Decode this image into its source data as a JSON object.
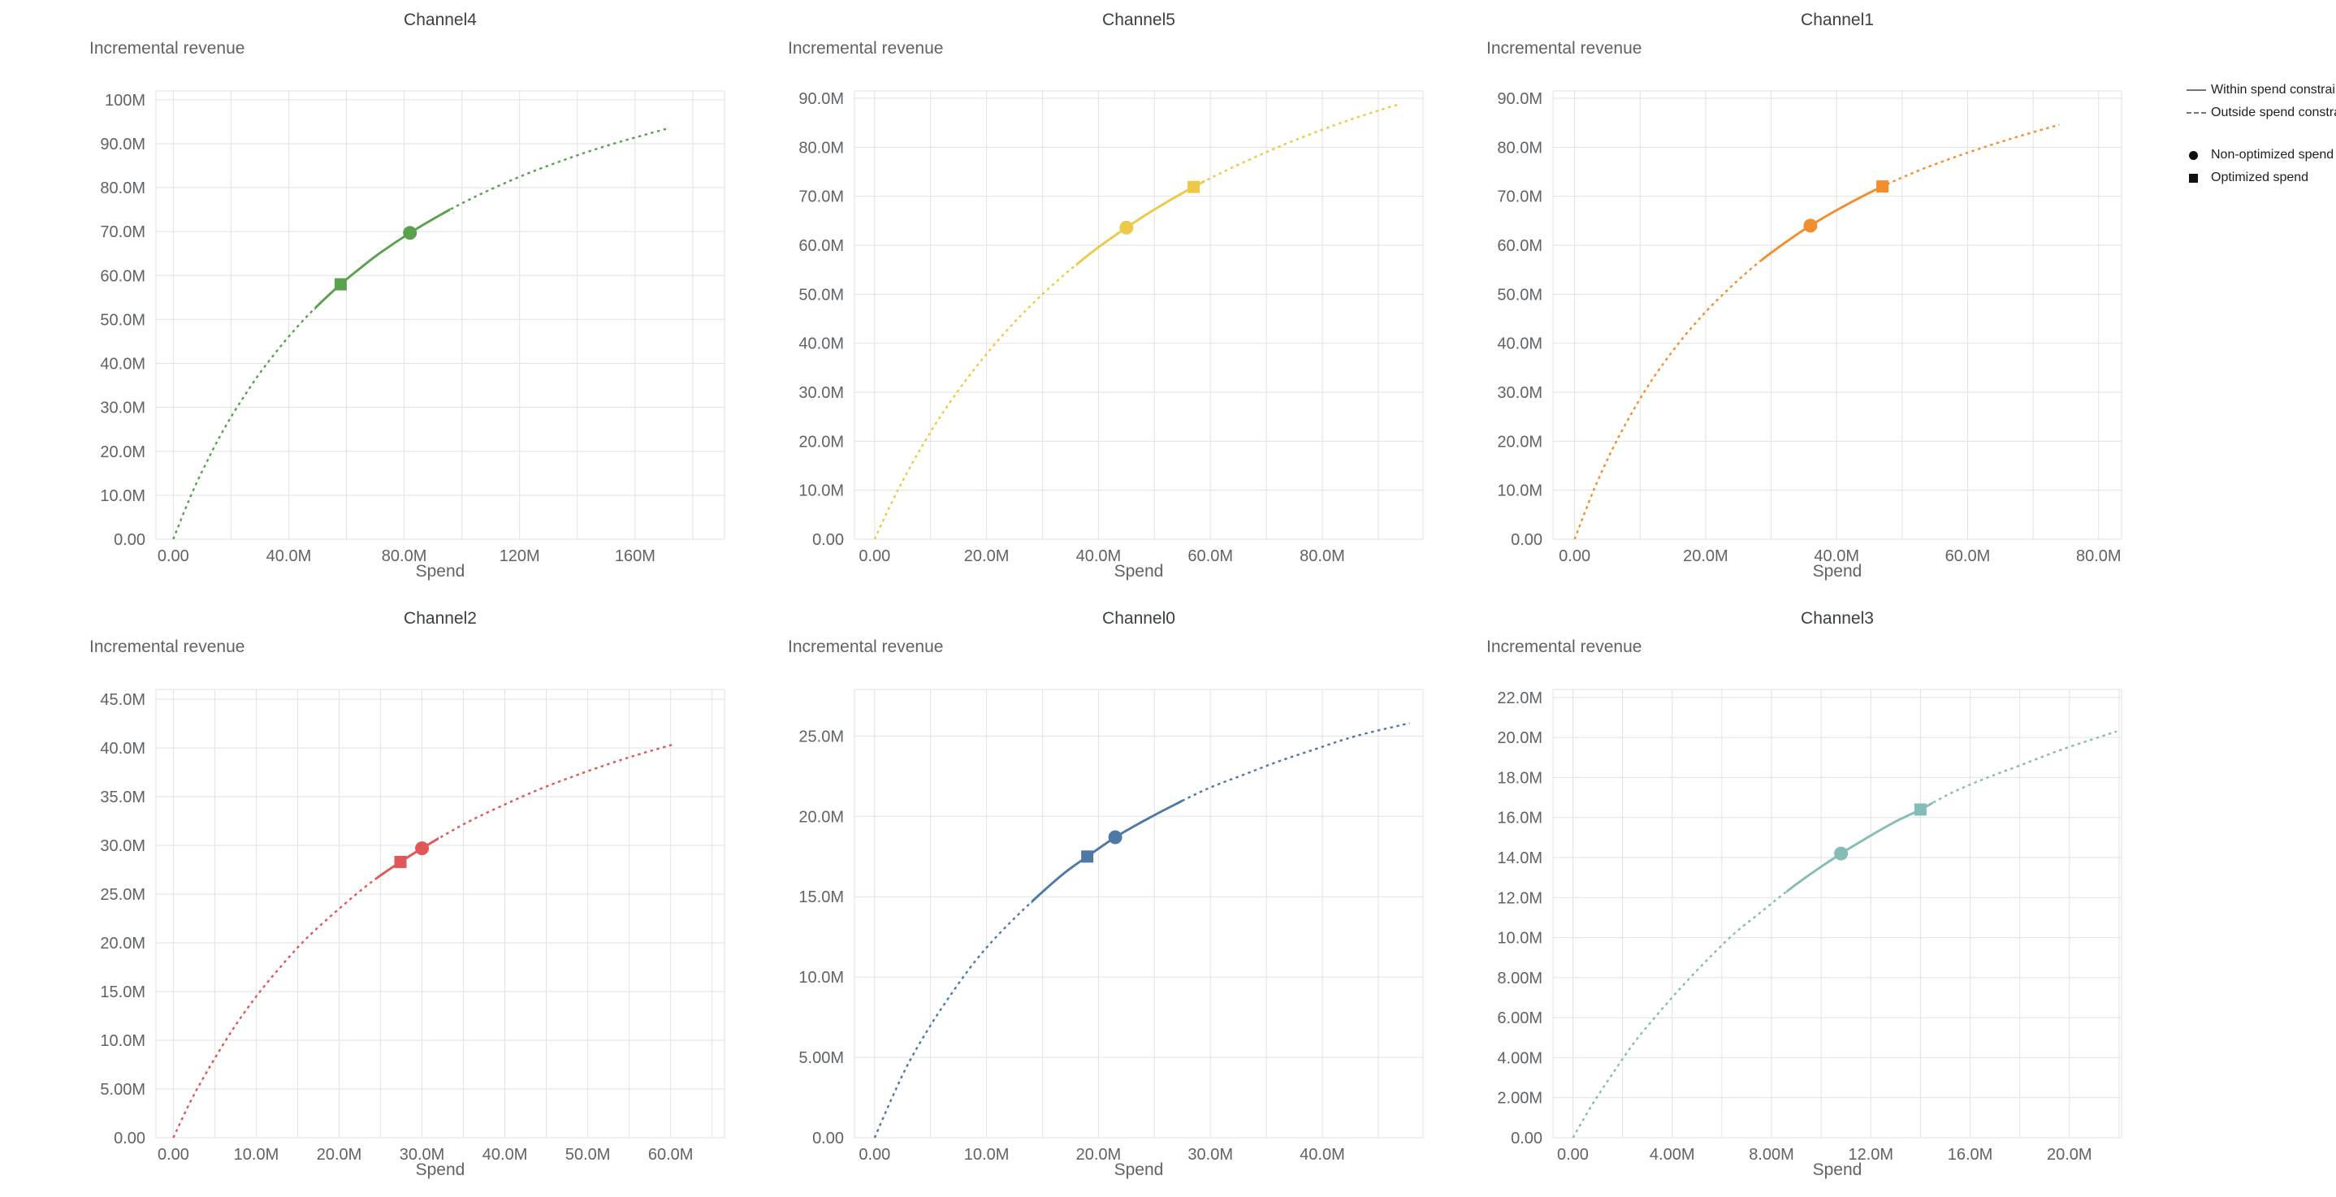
{
  "axis_labels": {
    "y": "Incremental revenue",
    "x": "Spend"
  },
  "legend": {
    "line_items": [
      {
        "style": "solid",
        "label": "Within spend constraint"
      },
      {
        "style": "dashed",
        "label": "Outside spend constraint"
      }
    ],
    "marker_items": [
      {
        "shape": "circle",
        "label": "Non-optimized spend"
      },
      {
        "shape": "square",
        "label": "Optimized spend"
      }
    ],
    "sample_color": "#757575",
    "marker_color": "#111111",
    "text_color": "#212121"
  },
  "style": {
    "grid_color": "#e2e2e2",
    "tick_text_color": "#5f6368",
    "title_text_color": "#3c4043"
  },
  "chart_data": [
    {
      "type": "line",
      "title": "Channel4",
      "color": "#59A14F",
      "xlabel": "Spend",
      "ylabel": "Incremental revenue",
      "units": "M",
      "x_range": [
        -6,
        191
      ],
      "y_range": [
        0,
        102
      ],
      "x_ticks": {
        "values": [
          0,
          40,
          80,
          120,
          160
        ],
        "labels": [
          "0.00",
          "40.0M",
          "80.0M",
          "120M",
          "160M"
        ],
        "minor_step": 20
      },
      "y_ticks": {
        "values": [
          0,
          10,
          20,
          30,
          40,
          50,
          60,
          70,
          80,
          90,
          100
        ],
        "labels": [
          "0.00",
          "10.0M",
          "20.0M",
          "30.0M",
          "40.0M",
          "50.0M",
          "60.0M",
          "70.0M",
          "80.0M",
          "90.0M",
          "100M"
        ]
      },
      "curve": {
        "x": [
          0,
          4,
          8,
          12,
          16,
          20,
          25,
          30,
          35,
          40,
          46,
          52,
          58,
          65,
          72,
          82,
          92,
          102,
          112,
          122,
          132,
          142,
          152,
          160,
          166,
          171
        ],
        "y": [
          0,
          6.6,
          12.7,
          18.1,
          23.2,
          27.8,
          33.0,
          37.8,
          42.1,
          46.1,
          50.5,
          54.4,
          58.0,
          61.8,
          65.3,
          69.7,
          73.6,
          77.1,
          80.2,
          83.0,
          85.5,
          87.8,
          89.9,
          91.4,
          92.5,
          93.4
        ]
      },
      "solid_segment_x": [
        49,
        96
      ],
      "markers": {
        "optimized": {
          "x": 58,
          "y": 58.0
        },
        "non_optimized": {
          "x": 82,
          "y": 69.7
        }
      }
    },
    {
      "type": "line",
      "title": "Channel5",
      "color": "#EDC948",
      "xlabel": "Spend",
      "ylabel": "Incremental revenue",
      "units": "M",
      "x_range": [
        -3.6,
        98
      ],
      "y_range": [
        0,
        91.5
      ],
      "x_ticks": {
        "values": [
          0,
          20,
          40,
          60,
          80
        ],
        "labels": [
          "0.00",
          "20.0M",
          "40.0M",
          "60.0M",
          "80.0M"
        ],
        "minor_step": 10
      },
      "y_ticks": {
        "values": [
          0,
          10,
          20,
          30,
          40,
          50,
          60,
          70,
          80,
          90
        ],
        "labels": [
          "0.00",
          "10.0M",
          "20.0M",
          "30.0M",
          "40.0M",
          "50.0M",
          "60.0M",
          "70.0M",
          "80.0M",
          "90.0M"
        ]
      },
      "curve": {
        "x": [
          0,
          3,
          6,
          9,
          12,
          16,
          20,
          24,
          28,
          32,
          36,
          40,
          45,
          50,
          57,
          64,
          72,
          80,
          87,
          94
        ],
        "y": [
          0,
          7.4,
          14.0,
          20.0,
          25.5,
          32.0,
          37.8,
          43.1,
          47.8,
          52.1,
          56.0,
          59.6,
          63.6,
          67.3,
          71.9,
          75.9,
          80.0,
          83.6,
          86.4,
          88.9
        ]
      },
      "solid_segment_x": [
        36,
        59
      ],
      "markers": {
        "non_optimized": {
          "x": 45,
          "y": 63.6
        },
        "optimized": {
          "x": 57,
          "y": 71.9
        }
      }
    },
    {
      "type": "line",
      "title": "Channel1",
      "color": "#F28E2B",
      "xlabel": "Spend",
      "ylabel": "Incremental revenue",
      "units": "M",
      "x_range": [
        -3.3,
        83.5
      ],
      "y_range": [
        0,
        91.5
      ],
      "x_ticks": {
        "values": [
          0,
          20,
          40,
          60,
          80
        ],
        "labels": [
          "0.00",
          "20.0M",
          "40.0M",
          "60.0M",
          "80.0M"
        ],
        "minor_step": 10
      },
      "y_ticks": {
        "values": [
          0,
          10,
          20,
          30,
          40,
          50,
          60,
          70,
          80,
          90
        ],
        "labels": [
          "0.00",
          "10.0M",
          "20.0M",
          "30.0M",
          "40.0M",
          "50.0M",
          "60.0M",
          "70.0M",
          "80.0M",
          "90.0M"
        ]
      },
      "curve": {
        "x": [
          0,
          3,
          6,
          9,
          12,
          16,
          20,
          24,
          28,
          32,
          36,
          41,
          47,
          53,
          60,
          67,
          74
        ],
        "y": [
          0,
          10.3,
          19.0,
          26.4,
          32.9,
          40.2,
          46.4,
          51.7,
          56.4,
          60.4,
          64.0,
          67.9,
          72.0,
          75.5,
          78.9,
          81.9,
          84.6
        ]
      },
      "solid_segment_x": [
        28.5,
        47.5
      ],
      "markers": {
        "non_optimized": {
          "x": 36,
          "y": 64.0
        },
        "optimized": {
          "x": 47,
          "y": 72.0
        }
      }
    },
    {
      "type": "line",
      "title": "Channel2",
      "color": "#E15759",
      "xlabel": "Spend",
      "ylabel": "Incremental revenue",
      "units": "M",
      "x_range": [
        -2.1,
        66.5
      ],
      "y_range": [
        0,
        46
      ],
      "x_ticks": {
        "values": [
          0,
          10,
          20,
          30,
          40,
          50,
          60
        ],
        "labels": [
          "0.00",
          "10.0M",
          "20.0M",
          "30.0M",
          "40.0M",
          "50.0M",
          "60.0M"
        ],
        "minor_step": 5
      },
      "y_ticks": {
        "values": [
          0,
          5,
          10,
          15,
          20,
          25,
          30,
          35,
          40,
          45
        ],
        "labels": [
          "0.00",
          "5.00M",
          "10.0M",
          "15.0M",
          "20.0M",
          "25.0M",
          "30.0M",
          "35.0M",
          "40.0M",
          "45.0M"
        ]
      },
      "curve": {
        "x": [
          0,
          2,
          4,
          7,
          10,
          13,
          16,
          20,
          24,
          27.4,
          30,
          33,
          36,
          40,
          44,
          48,
          52,
          56,
          60.5
        ],
        "y": [
          0,
          3.6,
          6.7,
          10.9,
          14.5,
          17.6,
          20.4,
          23.5,
          26.3,
          28.3,
          29.7,
          31.2,
          32.6,
          34.2,
          35.7,
          37.0,
          38.2,
          39.3,
          40.4
        ]
      },
      "solid_segment_x": [
        24.5,
        32
      ],
      "markers": {
        "optimized": {
          "x": 27.4,
          "y": 28.3
        },
        "non_optimized": {
          "x": 30,
          "y": 29.7
        }
      }
    },
    {
      "type": "line",
      "title": "Channel0",
      "color": "#4E79A7",
      "xlabel": "Spend",
      "ylabel": "Incremental revenue",
      "units": "M",
      "x_range": [
        -1.8,
        49
      ],
      "y_range": [
        0,
        27.9
      ],
      "x_ticks": {
        "values": [
          0,
          10,
          20,
          30,
          40
        ],
        "labels": [
          "0.00",
          "10.0M",
          "20.0M",
          "30.0M",
          "40.0M"
        ],
        "minor_step": 5
      },
      "y_ticks": {
        "values": [
          0,
          5,
          10,
          15,
          20,
          25
        ],
        "labels": [
          "0.00",
          "5.00M",
          "10.0M",
          "15.0M",
          "20.0M",
          "25.0M"
        ]
      },
      "curve": {
        "x": [
          0,
          1.5,
          3,
          5,
          7,
          9,
          11,
          13,
          15,
          17,
          19,
          21.5,
          24,
          27,
          30,
          33,
          36,
          39,
          43,
          47.8
        ],
        "y": [
          0,
          2.4,
          4.6,
          7.0,
          9.1,
          11.0,
          12.6,
          14.0,
          15.3,
          16.5,
          17.5,
          18.7,
          19.7,
          20.8,
          21.8,
          22.6,
          23.4,
          24.1,
          25.0,
          25.8
        ]
      },
      "solid_segment_x": [
        14,
        27.5
      ],
      "markers": {
        "optimized": {
          "x": 19,
          "y": 17.5
        },
        "non_optimized": {
          "x": 21.5,
          "y": 18.7
        }
      }
    },
    {
      "type": "line",
      "title": "Channel3",
      "color": "#86BCB6",
      "xlabel": "Spend",
      "ylabel": "Incremental revenue",
      "units": "M",
      "x_range": [
        -0.8,
        22.1
      ],
      "y_range": [
        0,
        22.4
      ],
      "x_ticks": {
        "values": [
          0,
          4,
          8,
          12,
          16,
          20
        ],
        "labels": [
          "0.00",
          "4.00M",
          "8.00M",
          "12.0M",
          "16.0M",
          "20.0M"
        ],
        "minor_step": 2
      },
      "y_ticks": {
        "values": [
          0,
          2,
          4,
          6,
          8,
          10,
          12,
          14,
          16,
          18,
          20,
          22
        ],
        "labels": [
          "0.00",
          "2.00M",
          "4.00M",
          "6.00M",
          "8.00M",
          "10.0M",
          "12.0M",
          "14.0M",
          "16.0M",
          "18.0M",
          "20.0M",
          "22.0M"
        ]
      },
      "curve": {
        "x": [
          0,
          0.8,
          1.6,
          2.5,
          3.5,
          4.5,
          5.5,
          6.5,
          7.5,
          8.5,
          9.6,
          10.8,
          12,
          13,
          14,
          15.2,
          16.5,
          18,
          19.7,
          21.9
        ],
        "y": [
          0,
          1.7,
          3.2,
          4.8,
          6.3,
          7.7,
          9.0,
          10.2,
          11.2,
          12.2,
          13.2,
          14.2,
          15.1,
          15.8,
          16.4,
          17.2,
          17.9,
          18.6,
          19.4,
          20.3
        ]
      },
      "solid_segment_x": [
        8.6,
        14.5
      ],
      "markers": {
        "non_optimized": {
          "x": 10.8,
          "y": 14.2
        },
        "optimized": {
          "x": 14,
          "y": 16.4
        }
      }
    }
  ]
}
